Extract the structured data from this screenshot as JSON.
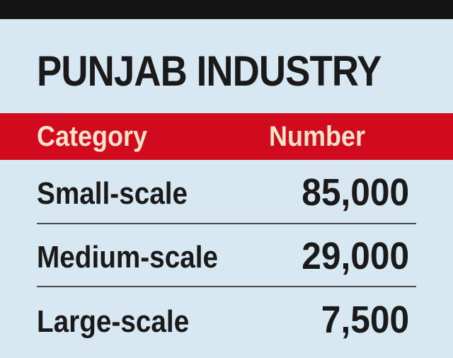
{
  "chart_data": {
    "type": "table",
    "title": "PUNJAB INDUSTRY",
    "columns": [
      "Category",
      "Number"
    ],
    "rows": [
      {
        "category": "Small-scale",
        "number": "85,000",
        "value": 85000
      },
      {
        "category": "Medium-scale",
        "number": "29,000",
        "value": 29000
      },
      {
        "category": "Large-scale",
        "number": "7,500",
        "value": 7500
      }
    ]
  },
  "colors": {
    "background": "#d7e8f2",
    "top_bar": "#141414",
    "header_band": "#d10a1e",
    "header_text": "#fbe2cd",
    "text": "#1a1a1a"
  }
}
